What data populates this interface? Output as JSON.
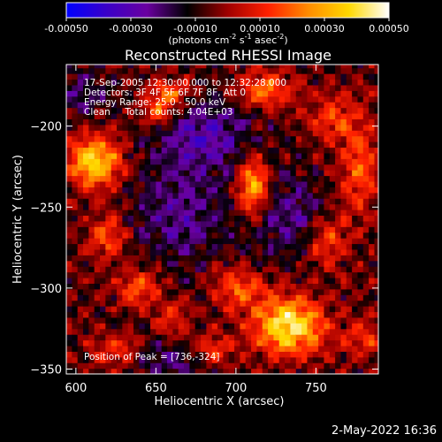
{
  "chart_data": {
    "type": "heatmap",
    "title": "Reconstructed RHESSI Image",
    "xlabel": "Heliocentric X (arcsec)",
    "ylabel": "Heliocentric Y (arcsec)",
    "xlim": [
      594,
      789
    ],
    "ylim": [
      -353,
      -162
    ],
    "x_ticks": [
      600,
      650,
      700,
      750
    ],
    "y_ticks": [
      -200,
      -250,
      -300,
      -350
    ],
    "colorbar": {
      "range": [
        -0.0005,
        0.0005
      ],
      "tick_values": [
        -0.0005,
        -0.0003,
        -0.0001,
        0.0001,
        0.0003,
        0.0005
      ],
      "tick_labels": [
        "-0.00050",
        "-0.00030",
        "-0.00010",
        "0.00010",
        "0.00030",
        "0.00050"
      ],
      "units_prefix": "(photons cm",
      "units_exp1": "-2",
      "units_mid": " s",
      "units_exp2": "-1",
      "units_suffix": " asec",
      "units_exp3": "-2",
      "units_close": ")",
      "colors": [
        "#0000ff",
        "#3a00c8",
        "#6a00a0",
        "#000000",
        "#a00000",
        "#ff2000",
        "#ff8c00",
        "#ffd800",
        "#ffffff"
      ]
    },
    "annotations": [
      "17-Sep-2005 12:30:00.000 to 12:32:28.000",
      "Detectors: 3F 4F 5F 6F 7F 8F, Att 0",
      "Energy Range: 25.0 - 50.0 keV",
      "Clean     Total counts: 4.04E+03"
    ],
    "peak_label": "Position of Peak = [736,-324]",
    "peak": [
      736,
      -324
    ],
    "sources": [
      {
        "x": 733,
        "y": -323,
        "sx": 15,
        "sy": 12,
        "amp": 1.0
      },
      {
        "x": 612,
        "y": -222,
        "sx": 11,
        "sy": 11,
        "amp": 0.9
      },
      {
        "x": 711,
        "y": -237,
        "sx": 7,
        "sy": 12,
        "amp": 0.82
      },
      {
        "x": 652,
        "y": -190,
        "sx": 8,
        "sy": 7,
        "amp": 0.55
      },
      {
        "x": 660,
        "y": -178,
        "sx": 10,
        "sy": 5,
        "amp": 0.5
      },
      {
        "x": 718,
        "y": -178,
        "sx": 12,
        "sy": 8,
        "amp": 0.55
      },
      {
        "x": 702,
        "y": -300,
        "sx": 11,
        "sy": 9,
        "amp": 0.5
      },
      {
        "x": 640,
        "y": -300,
        "sx": 9,
        "sy": 8,
        "amp": 0.5
      },
      {
        "x": 757,
        "y": -270,
        "sx": 9,
        "sy": 12,
        "amp": 0.45
      },
      {
        "x": 620,
        "y": -268,
        "sx": 8,
        "sy": 10,
        "amp": 0.45
      },
      {
        "x": 625,
        "y": -338,
        "sx": 10,
        "sy": 7,
        "amp": 0.4
      },
      {
        "x": 685,
        "y": -338,
        "sx": 10,
        "sy": 7,
        "amp": 0.4
      },
      {
        "x": 777,
        "y": -225,
        "sx": 9,
        "sy": 22,
        "amp": 0.45
      },
      {
        "x": 760,
        "y": -195,
        "sx": 10,
        "sy": 10,
        "amp": 0.35
      },
      {
        "x": 780,
        "y": -330,
        "sx": 8,
        "sy": 8,
        "amp": 0.35
      },
      {
        "x": 660,
        "y": -320,
        "sx": 8,
        "sy": 8,
        "amp": 0.35
      }
    ],
    "negative_regions": [
      {
        "x": 680,
        "y": -205,
        "sx": 22,
        "sy": 16,
        "amp": 0.45
      },
      {
        "x": 665,
        "y": -255,
        "sx": 20,
        "sy": 22,
        "amp": 0.35
      },
      {
        "x": 735,
        "y": -255,
        "sx": 18,
        "sy": 18,
        "amp": 0.35
      },
      {
        "x": 660,
        "y": -345,
        "sx": 18,
        "sy": 10,
        "amp": 0.3
      },
      {
        "x": 605,
        "y": -180,
        "sx": 12,
        "sy": 10,
        "amp": 0.25
      }
    ]
  },
  "footer": {
    "date": "2-May-2022 16:36"
  }
}
